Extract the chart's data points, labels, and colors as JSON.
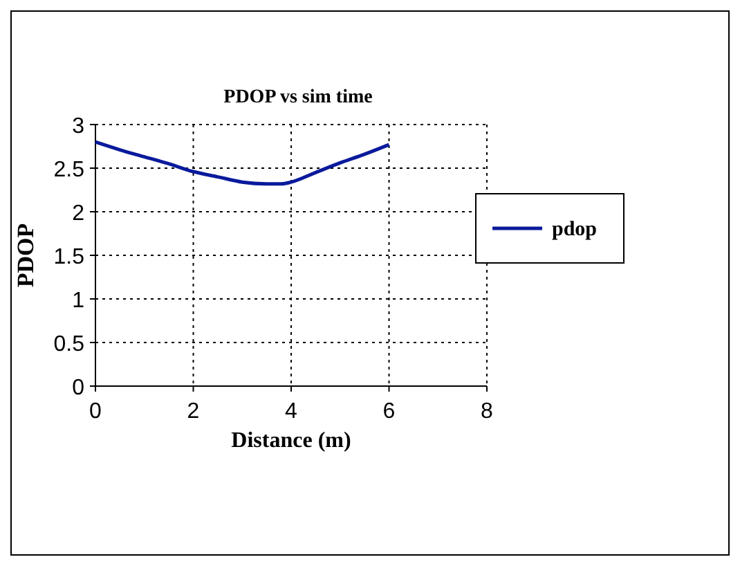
{
  "chart_data": {
    "type": "line",
    "title": "PDOP vs sim time",
    "xlabel": "Distance (m)",
    "ylabel": "PDOP",
    "x": [
      0,
      0.5,
      1,
      1.5,
      2,
      2.5,
      3,
      3.5,
      3.8,
      4,
      4.5,
      5,
      5.5,
      6
    ],
    "series": [
      {
        "name": "pdop",
        "color": "#0a1a9c",
        "values": [
          2.8,
          2.71,
          2.63,
          2.55,
          2.46,
          2.4,
          2.34,
          2.32,
          2.32,
          2.34,
          2.45,
          2.56,
          2.66,
          2.77
        ]
      }
    ],
    "xlim": [
      0,
      8
    ],
    "xticks": [
      0,
      2,
      4,
      6,
      8
    ],
    "ylim": [
      0,
      3
    ],
    "yticks": [
      0,
      0.5,
      1,
      1.5,
      2,
      2.5,
      3
    ],
    "grid": true,
    "legend": "right",
    "marker": "none",
    "line_style": "solid"
  }
}
